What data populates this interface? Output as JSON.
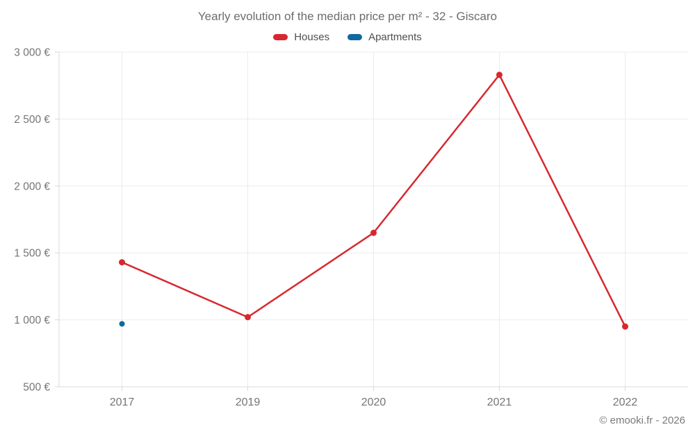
{
  "header": {
    "title": "Yearly evolution of the median price per m² - 32 - Giscaro"
  },
  "footer": {
    "credit": "© emooki.fr - 2026"
  },
  "colors": {
    "houses": "#d7282f",
    "apartments": "#1069a0",
    "grid": "#ebebeb",
    "axis": "#d8d8d8",
    "tick": "#d8d8d8",
    "tick_label": "#757575",
    "title_text": "#6d6d6d",
    "legend_text": "#4f4f4f",
    "footer_text": "#7a7a7a",
    "background": "#ffffff"
  },
  "chart_data": {
    "type": "line",
    "title": "Yearly evolution of the median price per m² - 32 - Giscaro",
    "xlabel": "",
    "ylabel": "",
    "categories": [
      "2017",
      "2019",
      "2020",
      "2021",
      "2022"
    ],
    "series": [
      {
        "name": "Houses",
        "color_key": "houses",
        "values": [
          1430,
          1020,
          1650,
          2830,
          950
        ],
        "marker_radius": 4.5,
        "line_width": 2.5
      },
      {
        "name": "Apartments",
        "color_key": "apartments",
        "values": [
          970,
          null,
          null,
          null,
          null
        ],
        "marker_radius": 4,
        "line_width": 2.5
      }
    ],
    "ylim": [
      500,
      3000
    ],
    "yticks": [
      500,
      1000,
      1500,
      2000,
      2500,
      3000
    ],
    "ytick_labels": [
      "500 €",
      "1 000 €",
      "1 500 €",
      "2 000 €",
      "2 500 €",
      "3 000 €"
    ],
    "currency": "€",
    "grid": true,
    "legend_position": "top"
  }
}
